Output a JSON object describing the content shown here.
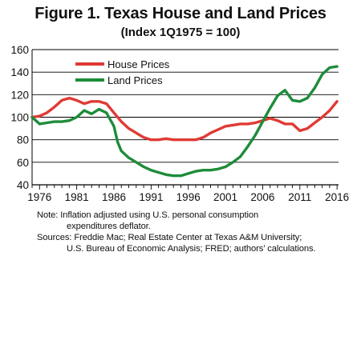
{
  "title": "Figure 1. Texas House and Land Prices",
  "subtitle": "(Index 1Q1975 = 100)",
  "colors": {
    "house": "#e03a34",
    "land": "#1e8c3a",
    "grid": "#000000"
  },
  "chart_data": {
    "type": "line",
    "title": "Figure 1. Texas House and Land Prices",
    "subtitle": "(Index 1Q1975 = 100)",
    "xlabel": "",
    "ylabel": "",
    "xlim": [
      1975,
      2016.2
    ],
    "ylim": [
      40,
      160
    ],
    "yticks": [
      40,
      60,
      80,
      100,
      120,
      140,
      160
    ],
    "xticks": [
      1976,
      1981,
      1986,
      1991,
      1996,
      2001,
      2006,
      2011,
      2016
    ],
    "grid": "horizontal",
    "legend": "top-left",
    "series": [
      {
        "name": "House Prices",
        "color": "#e03a34",
        "x": [
          1975,
          1976,
          1977,
          1978,
          1979,
          1980,
          1981,
          1982,
          1983,
          1984,
          1985,
          1986,
          1987,
          1988,
          1989,
          1990,
          1991,
          1992,
          1993,
          1994,
          1995,
          1996,
          1997,
          1998,
          1999,
          2000,
          2001,
          2002,
          2003,
          2004,
          2005,
          2006,
          2007,
          2008,
          2009,
          2010,
          2011,
          2012,
          2013,
          2014,
          2015,
          2016
        ],
        "values": [
          100,
          101,
          104,
          109,
          115,
          117,
          115,
          112,
          114,
          114,
          112,
          104,
          96,
          90,
          86,
          82,
          80,
          80,
          81,
          80,
          80,
          80,
          80,
          82,
          86,
          89,
          92,
          93,
          94,
          94,
          95,
          97,
          99,
          97,
          94,
          94,
          88,
          90,
          95,
          100,
          106,
          114
        ]
      },
      {
        "name": "Land Prices",
        "color": "#1e8c3a",
        "x": [
          1975,
          1976,
          1977,
          1978,
          1979,
          1980,
          1981,
          1982,
          1983,
          1984,
          1985,
          1986,
          1986.5,
          1987,
          1988,
          1989,
          1990,
          1991,
          1992,
          1993,
          1994,
          1995,
          1996,
          1997,
          1998,
          1999,
          2000,
          2001,
          2002,
          2003,
          2004,
          2005,
          2006,
          2007,
          2008,
          2009,
          2010,
          2011,
          2012,
          2013,
          2014,
          2015,
          2016
        ],
        "values": [
          100,
          94,
          95,
          96,
          96,
          97,
          100,
          106,
          103,
          107,
          104,
          92,
          78,
          70,
          64,
          60,
          56,
          53,
          51,
          49,
          48,
          48,
          50,
          52,
          53,
          53,
          54,
          56,
          60,
          65,
          74,
          84,
          96,
          108,
          119,
          124,
          115,
          114,
          117,
          126,
          138,
          144,
          145
        ]
      }
    ]
  },
  "legend": {
    "house_label": "House Prices",
    "land_label": "Land Prices"
  },
  "notes": {
    "line1": "Note: Inflation adjusted using U.S. personal consumption",
    "line2": "expenditures deflator.",
    "line3": "Sources: Freddie Mac; Real Estate Center at Texas A&M University;",
    "line4": "U.S. Bureau of Economic Analysis; FRED; authors’ calculations."
  }
}
